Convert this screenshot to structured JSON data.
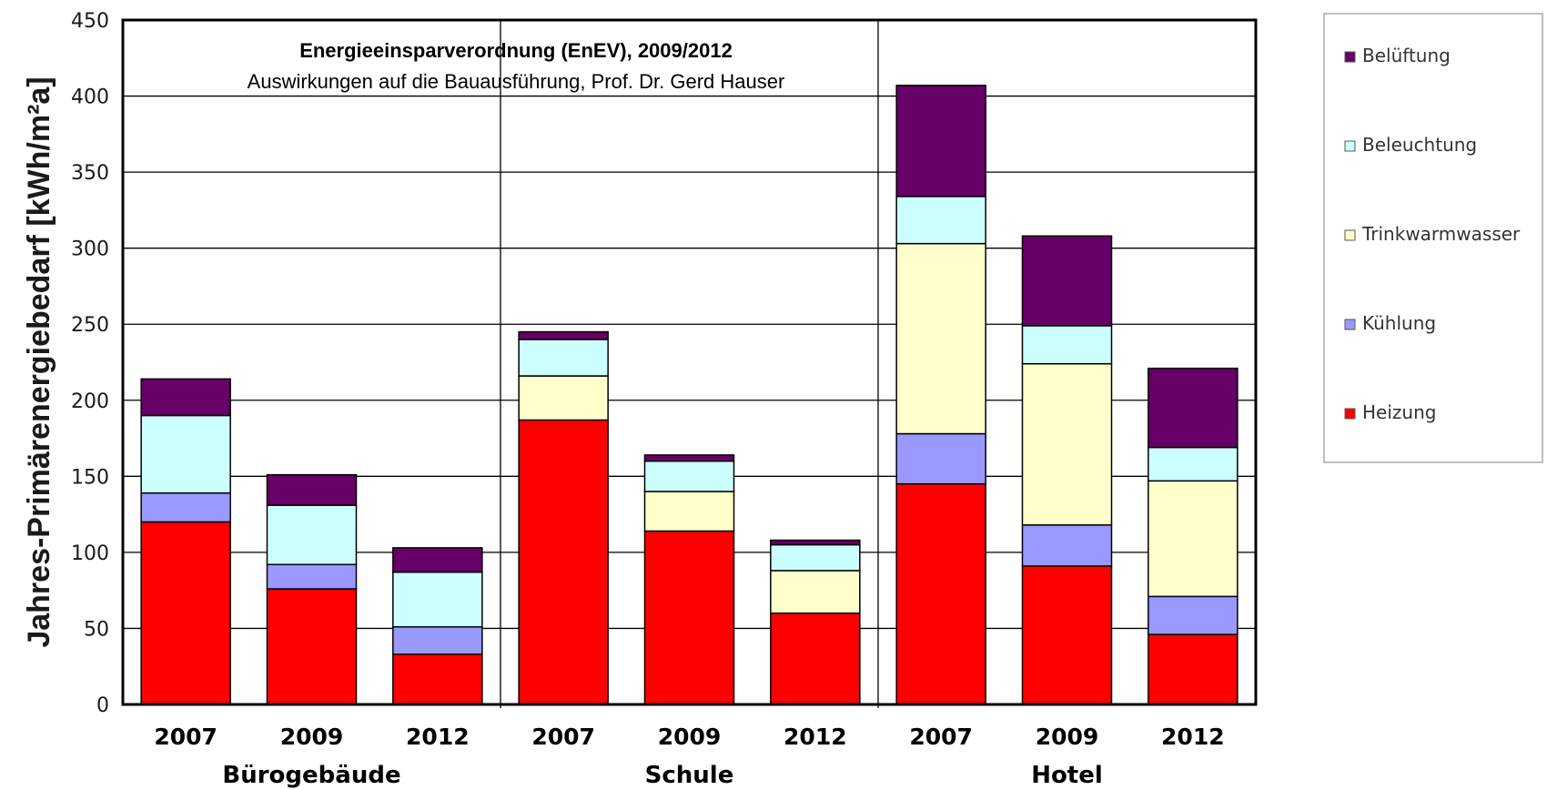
{
  "chart_data": {
    "type": "bar",
    "stacked": true,
    "title": "Energieeinsparverordnung (EnEV), 2009/2012",
    "subtitle": "Auswirkungen auf die Bauausführung, Prof. Dr. Gerd Hauser",
    "ylabel": "Jahres-Primärenergiebedarf [kWh/m²a]",
    "ylim": [
      0,
      450
    ],
    "yticks": [
      0,
      50,
      100,
      150,
      200,
      250,
      300,
      350,
      400,
      450
    ],
    "grid": true,
    "legend_position": "right",
    "categories": [
      "2007",
      "2009",
      "2012",
      "2007",
      "2009",
      "2012",
      "2007",
      "2009",
      "2012"
    ],
    "groups": [
      {
        "name": "Bürogebäude",
        "size": 3
      },
      {
        "name": "Schule",
        "size": 3
      },
      {
        "name": "Hotel",
        "size": 3
      }
    ],
    "series": [
      {
        "name": "Heizung",
        "color": "#ff0000",
        "values": [
          120,
          76,
          33,
          187,
          114,
          60,
          145,
          91,
          46
        ]
      },
      {
        "name": "Kühlung",
        "color": "#9999ff",
        "values": [
          19,
          16,
          18,
          0,
          0,
          0,
          33,
          27,
          25
        ]
      },
      {
        "name": "Trinkwarmwasser",
        "color": "#ffffcc",
        "values": [
          0,
          0,
          0,
          29,
          26,
          28,
          125,
          106,
          76
        ]
      },
      {
        "name": "Beleuchtung",
        "color": "#ccffff",
        "values": [
          51,
          39,
          36,
          24,
          20,
          17,
          31,
          25,
          22
        ]
      },
      {
        "name": "Belüftung",
        "color": "#660066",
        "values": [
          24,
          20,
          16,
          5,
          4,
          3,
          73,
          59,
          52
        ]
      }
    ]
  }
}
